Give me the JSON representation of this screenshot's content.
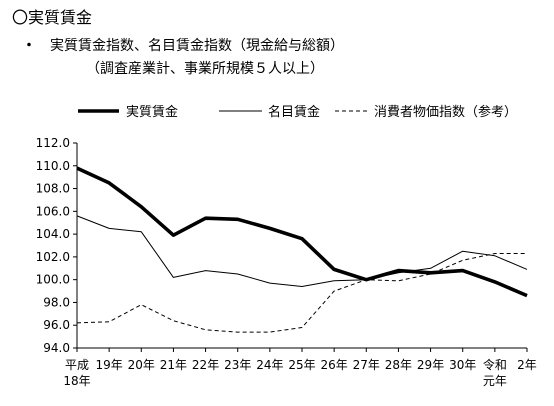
{
  "heading": "〇実質賃金",
  "subheading": {
    "bullet": "・",
    "text": "実質賃金指数、名目賃金指数（現金給与総額）"
  },
  "subnote": "（調査産業計、事業所規模５人以上）",
  "chart_data": {
    "type": "line",
    "title": "",
    "xlabel": "",
    "ylabel": "",
    "categories": [
      [
        "平成",
        "18年"
      ],
      [
        "19年"
      ],
      [
        "20年"
      ],
      [
        "21年"
      ],
      [
        "22年"
      ],
      [
        "23年"
      ],
      [
        "24年"
      ],
      [
        "25年"
      ],
      [
        "26年"
      ],
      [
        "27年"
      ],
      [
        "28年"
      ],
      [
        "29年"
      ],
      [
        "30年"
      ],
      [
        "令和",
        "元年"
      ],
      [
        "2年"
      ]
    ],
    "ylim": [
      94.0,
      112.0
    ],
    "yticks": [
      "94.0",
      "96.0",
      "98.0",
      "100.0",
      "102.0",
      "104.0",
      "106.0",
      "108.0",
      "110.0",
      "112.0"
    ],
    "grid": false,
    "legend_position": "top",
    "series": [
      {
        "name": "実質賃金",
        "style": "thick-solid",
        "color": "#000000",
        "values": [
          109.8,
          108.5,
          106.4,
          103.9,
          105.4,
          105.3,
          104.5,
          103.6,
          100.9,
          100.0,
          100.8,
          100.6,
          100.8,
          99.8,
          98.6
        ]
      },
      {
        "name": "名目賃金",
        "style": "thin-solid",
        "color": "#000000",
        "values": [
          105.6,
          104.5,
          104.2,
          100.2,
          100.8,
          100.5,
          99.7,
          99.4,
          99.9,
          100.0,
          100.6,
          101.0,
          102.5,
          102.1,
          100.9
        ]
      },
      {
        "name": "消費者物価指数（参考）",
        "style": "dashed",
        "color": "#000000",
        "values": [
          96.2,
          96.3,
          97.8,
          96.4,
          95.6,
          95.4,
          95.4,
          95.8,
          99.0,
          100.0,
          99.9,
          100.5,
          101.7,
          102.3,
          102.3
        ]
      }
    ]
  }
}
